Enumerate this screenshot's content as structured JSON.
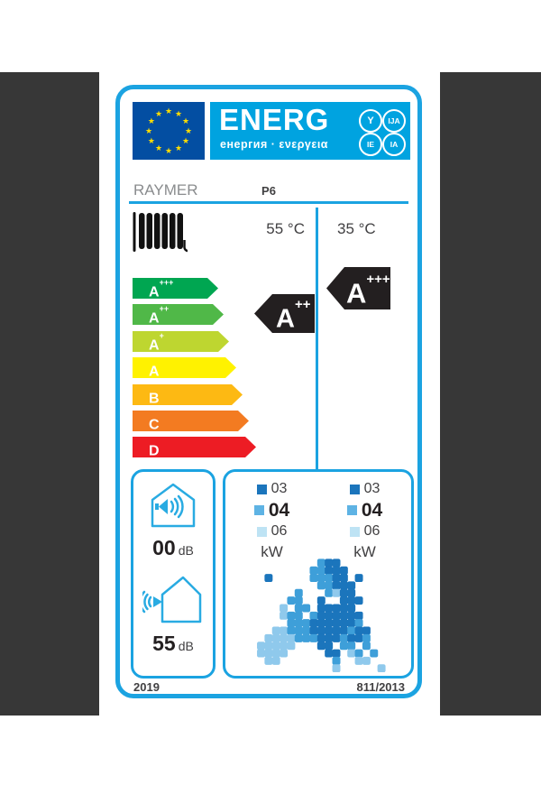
{
  "icons": {
    "star": "★"
  },
  "colors": {
    "side_panels": "#373737",
    "label_border_cyan": "#1BA3E1",
    "logo_band": "#00A3E0",
    "eu_flag_blue": "#034EA2",
    "star_yellow": "#FFDE00",
    "rating_arrow_black": "#231F20",
    "scale": [
      "#00A651",
      "#50B848",
      "#BED630",
      "#FFF200",
      "#FDB913",
      "#F37B21",
      "#ED1C24"
    ],
    "kw_squares": [
      "#1B75BC",
      "#5EB3E4",
      "#BEE3F4"
    ],
    "map_blues": [
      "#1B75BC",
      "#3E9FD9",
      "#8FC9EC",
      "#C4E5F6"
    ]
  },
  "header": {
    "title": "ENERG",
    "subtitle": "енергия · ενεργεια",
    "circles": [
      "Y",
      "IJA",
      "IE",
      "IA"
    ]
  },
  "brand": {
    "supplier": "RAYMER",
    "model": "P6"
  },
  "columns": {
    "left_temp": "55 °C",
    "right_temp": "35 °C"
  },
  "scale": {
    "classes": [
      {
        "label": "A",
        "sup": "+++"
      },
      {
        "label": "A",
        "sup": "++"
      },
      {
        "label": "A",
        "sup": "+"
      },
      {
        "label": "A",
        "sup": ""
      },
      {
        "label": "B",
        "sup": ""
      },
      {
        "label": "C",
        "sup": ""
      },
      {
        "label": "D",
        "sup": ""
      }
    ]
  },
  "ratings": {
    "left": {
      "label": "A",
      "sup": "++"
    },
    "right": {
      "label": "A",
      "sup": "+++"
    }
  },
  "noise": {
    "indoor": {
      "value": "00",
      "unit": "dB"
    },
    "outdoor": {
      "value": "55",
      "unit": "dB"
    }
  },
  "power": {
    "left": {
      "values": [
        "03",
        "04",
        "06"
      ],
      "unit": "kW"
    },
    "right": {
      "values": [
        "03",
        "04",
        "06"
      ],
      "unit": "kW"
    }
  },
  "footer": {
    "year": "2019",
    "regulation": "811/2013"
  }
}
